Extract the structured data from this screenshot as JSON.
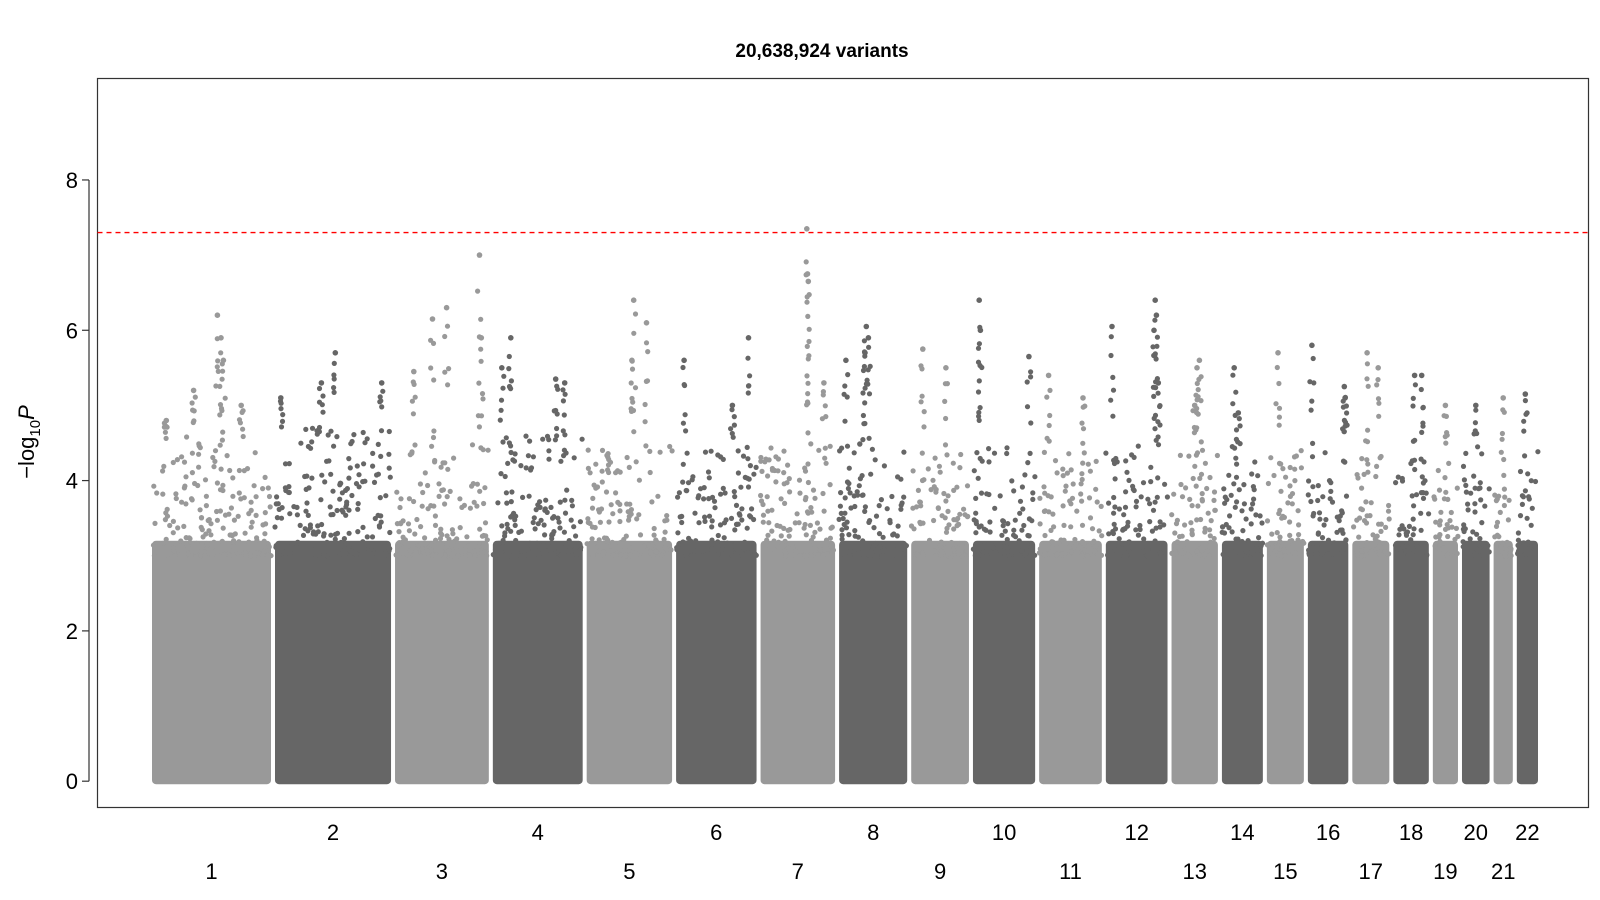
{
  "chart_data": {
    "type": "scatter",
    "title": "20,638,924 variants",
    "ylabel_base": "−log",
    "ylabel_sub": "10",
    "ylabel_var": "P",
    "xlabel": "",
    "ylim": [
      -0.35,
      9.35
    ],
    "yticks": [
      0,
      2,
      4,
      6,
      8
    ],
    "grid": false,
    "significance_line": {
      "y": 7.3,
      "color": "#ff0000",
      "style": "dashed"
    },
    "colors": {
      "light": "#999999",
      "dark": "#666666"
    },
    "chromosomes": [
      {
        "label": "1",
        "shade": "light",
        "x": [
          0,
          249
        ],
        "typical_max": 4.6,
        "peaks": [
          [
            0.55,
            6.2
          ],
          [
            0.58,
            5.9
          ],
          [
            0.6,
            5.6
          ],
          [
            0.12,
            4.8
          ],
          [
            0.35,
            5.2
          ],
          [
            0.75,
            5.0
          ]
        ]
      },
      {
        "label": "2",
        "shade": "dark",
        "x": [
          249,
          492
        ],
        "typical_max": 4.7,
        "peaks": [
          [
            0.52,
            5.7
          ],
          [
            0.4,
            5.3
          ],
          [
            0.92,
            5.3
          ],
          [
            0.05,
            5.1
          ]
        ]
      },
      {
        "label": "3",
        "shade": "light",
        "x": [
          492,
          690
        ],
        "typical_max": 4.5,
        "peaks": [
          [
            0.9,
            7.0
          ],
          [
            0.55,
            6.3
          ],
          [
            0.4,
            6.15
          ],
          [
            0.92,
            5.9
          ],
          [
            0.2,
            5.45
          ]
        ]
      },
      {
        "label": "4",
        "shade": "dark",
        "x": [
          690,
          880
        ],
        "typical_max": 4.6,
        "peaks": [
          [
            0.2,
            5.9
          ],
          [
            0.1,
            5.5
          ],
          [
            0.7,
            5.35
          ],
          [
            0.8,
            5.3
          ]
        ]
      },
      {
        "label": "5",
        "shade": "light",
        "x": [
          880,
          1061
        ],
        "typical_max": 4.5,
        "peaks": [
          [
            0.55,
            6.4
          ],
          [
            0.7,
            6.1
          ],
          [
            0.53,
            5.6
          ]
        ]
      },
      {
        "label": "6",
        "shade": "dark",
        "x": [
          1061,
          1232
        ],
        "typical_max": 4.5,
        "peaks": [
          [
            0.9,
            5.9
          ],
          [
            0.1,
            5.6
          ],
          [
            0.7,
            5.0
          ]
        ]
      },
      {
        "label": "7",
        "shade": "light",
        "x": [
          1232,
          1391
        ],
        "typical_max": 4.5,
        "peaks": [
          [
            0.62,
            7.35
          ],
          [
            0.63,
            6.75
          ],
          [
            0.64,
            6.65
          ],
          [
            0.85,
            5.3
          ]
        ]
      },
      {
        "label": "8",
        "shade": "dark",
        "x": [
          1391,
          1537
        ],
        "typical_max": 4.6,
        "peaks": [
          [
            0.4,
            6.05
          ],
          [
            0.43,
            5.9
          ],
          [
            0.38,
            5.7
          ],
          [
            0.1,
            5.6
          ]
        ]
      },
      {
        "label": "9",
        "shade": "light",
        "x": [
          1537,
          1662
        ],
        "typical_max": 4.4,
        "peaks": [
          [
            0.2,
            5.75
          ],
          [
            0.6,
            5.5
          ]
        ]
      },
      {
        "label": "10",
        "shade": "dark",
        "x": [
          1662,
          1796
        ],
        "typical_max": 4.5,
        "peaks": [
          [
            0.1,
            6.4
          ],
          [
            0.12,
            6.0
          ],
          [
            0.9,
            5.65
          ]
        ]
      },
      {
        "label": "11",
        "shade": "light",
        "x": [
          1796,
          1931
        ],
        "typical_max": 4.4,
        "peaks": [
          [
            0.15,
            5.4
          ],
          [
            0.7,
            5.1
          ]
        ]
      },
      {
        "label": "12",
        "shade": "dark",
        "x": [
          1931,
          2064
        ],
        "typical_max": 4.5,
        "peaks": [
          [
            0.8,
            6.4
          ],
          [
            0.82,
            6.2
          ],
          [
            0.78,
            6.0
          ],
          [
            0.1,
            6.05
          ],
          [
            0.85,
            5.3
          ]
        ]
      },
      {
        "label": "13",
        "shade": "light",
        "x": [
          2064,
          2166
        ],
        "typical_max": 4.5,
        "peaks": [
          [
            0.6,
            5.6
          ],
          [
            0.55,
            5.5
          ],
          [
            0.5,
            5.0
          ]
        ]
      },
      {
        "label": "14",
        "shade": "dark",
        "x": [
          2166,
          2257
        ],
        "typical_max": 4.4,
        "peaks": [
          [
            0.3,
            5.5
          ],
          [
            0.4,
            4.9
          ]
        ]
      },
      {
        "label": "15",
        "shade": "light",
        "x": [
          2257,
          2340
        ],
        "typical_max": 4.4,
        "peaks": [
          [
            0.3,
            5.7
          ]
        ]
      },
      {
        "label": "16",
        "shade": "dark",
        "x": [
          2340,
          2430
        ],
        "typical_max": 4.5,
        "peaks": [
          [
            0.1,
            5.8
          ],
          [
            0.9,
            5.25
          ],
          [
            0.92,
            5.1
          ]
        ]
      },
      {
        "label": "17",
        "shade": "light",
        "x": [
          2430,
          2513
        ],
        "typical_max": 4.4,
        "peaks": [
          [
            0.4,
            5.7
          ],
          [
            0.7,
            5.5
          ]
        ]
      },
      {
        "label": "18",
        "shade": "dark",
        "x": [
          2513,
          2593
        ],
        "typical_max": 4.3,
        "peaks": [
          [
            0.6,
            5.4
          ],
          [
            0.8,
            5.4
          ]
        ]
      },
      {
        "label": "19",
        "shade": "light",
        "x": [
          2593,
          2652
        ],
        "typical_max": 4.3,
        "peaks": [
          [
            0.5,
            5.0
          ]
        ]
      },
      {
        "label": "20",
        "shade": "dark",
        "x": [
          2652,
          2716
        ],
        "typical_max": 4.4,
        "peaks": [
          [
            0.5,
            5.0
          ]
        ]
      },
      {
        "label": "21",
        "shade": "light",
        "x": [
          2716,
          2763
        ],
        "typical_max": 4.3,
        "peaks": [
          [
            0.5,
            5.1
          ]
        ]
      },
      {
        "label": "22",
        "shade": "dark",
        "x": [
          2763,
          2814
        ],
        "typical_max": 4.4,
        "peaks": [
          [
            0.4,
            5.15
          ]
        ]
      }
    ]
  }
}
